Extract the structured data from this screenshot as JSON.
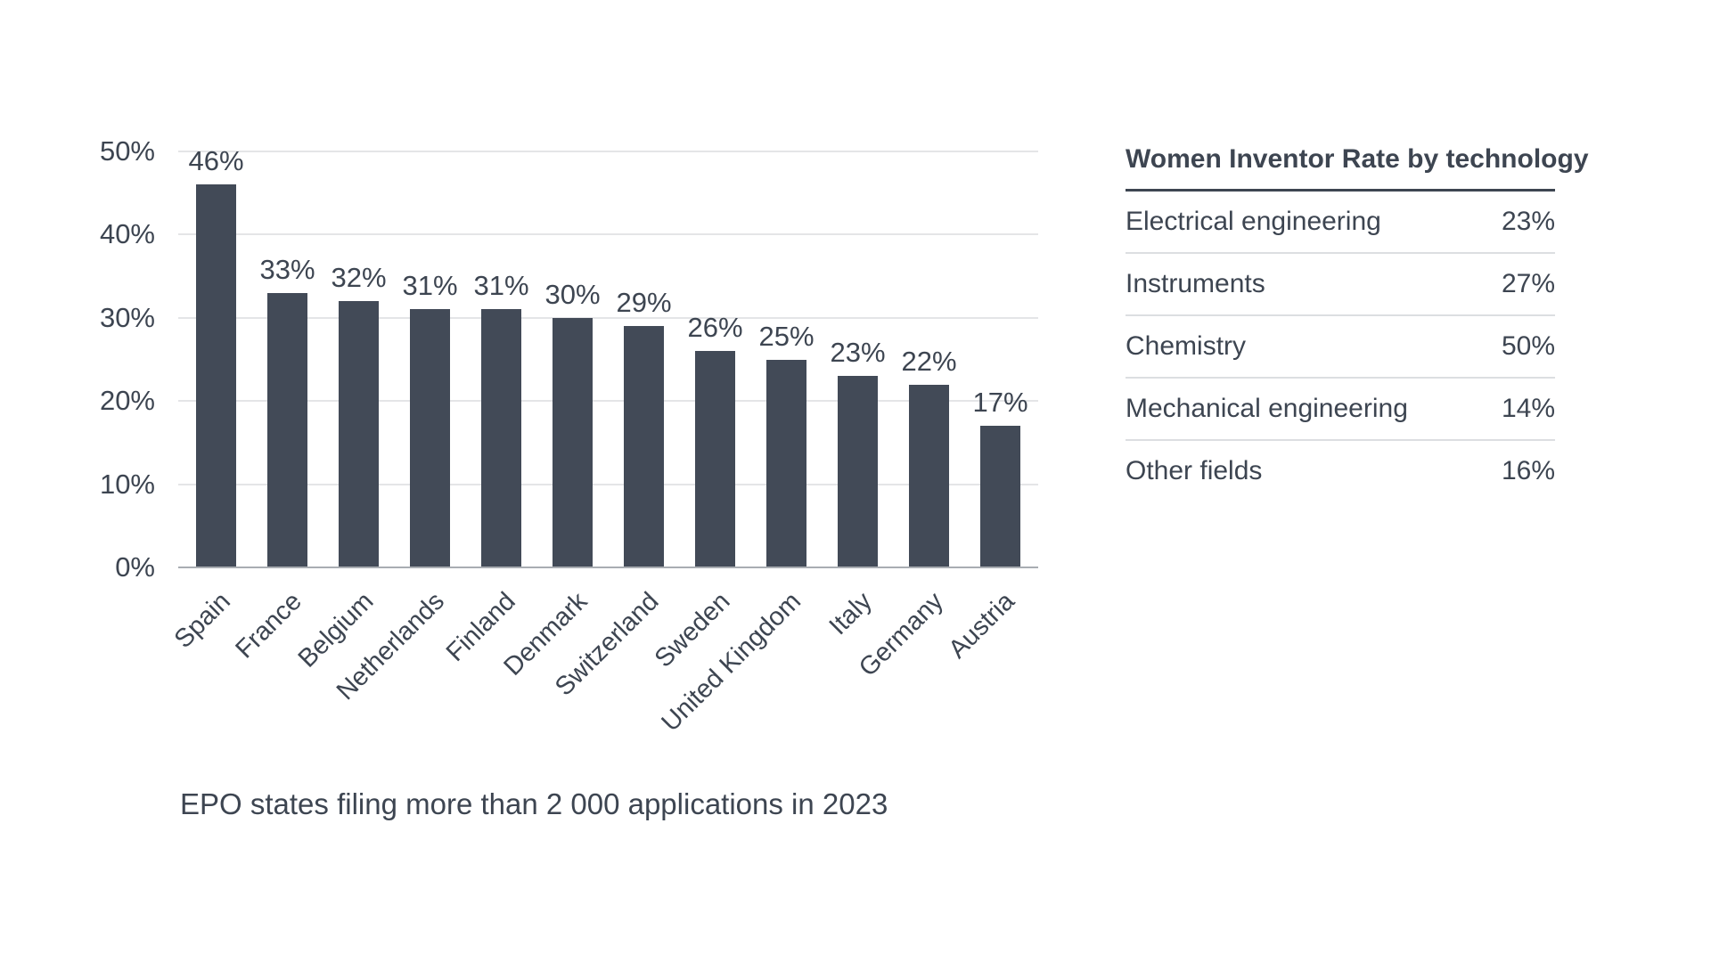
{
  "colors": {
    "bar": "#424a57",
    "text": "#3d4551",
    "gridline": "#e4e5e7",
    "axis_line": "#a9adb2",
    "table_header_rule": "#3d4551",
    "table_separator": "#dcdee1",
    "background": "#ffffff"
  },
  "chart_data": {
    "type": "bar",
    "title": "",
    "categories": [
      "Spain",
      "France",
      "Belgium",
      "Netherlands",
      "Finland",
      "Denmark",
      "Switzerland",
      "Sweden",
      "United Kingdom",
      "Italy",
      "Germany",
      "Austria"
    ],
    "values": [
      46,
      33,
      32,
      31,
      31,
      30,
      29,
      26,
      25,
      23,
      22,
      17
    ],
    "value_label_format": "percent",
    "xlabel": "",
    "ylabel": "",
    "ylim": [
      0,
      50
    ],
    "y_ticks": [
      0,
      10,
      20,
      30,
      40,
      50
    ],
    "y_tick_suffix": "%",
    "grid": "horizontal",
    "legend": "none",
    "x_label_rotation_deg": -45,
    "caption": "EPO states filing more than 2 000 applications in 2023"
  },
  "side_table": {
    "title": "Women Inventor Rate by technology",
    "rows": [
      {
        "label": "Electrical engineering",
        "value": "23%"
      },
      {
        "label": "Instruments",
        "value": "27%"
      },
      {
        "label": "Chemistry",
        "value": "50%"
      },
      {
        "label": "Mechanical engineering",
        "value": "14%"
      },
      {
        "label": "Other fields",
        "value": "16%"
      }
    ]
  }
}
